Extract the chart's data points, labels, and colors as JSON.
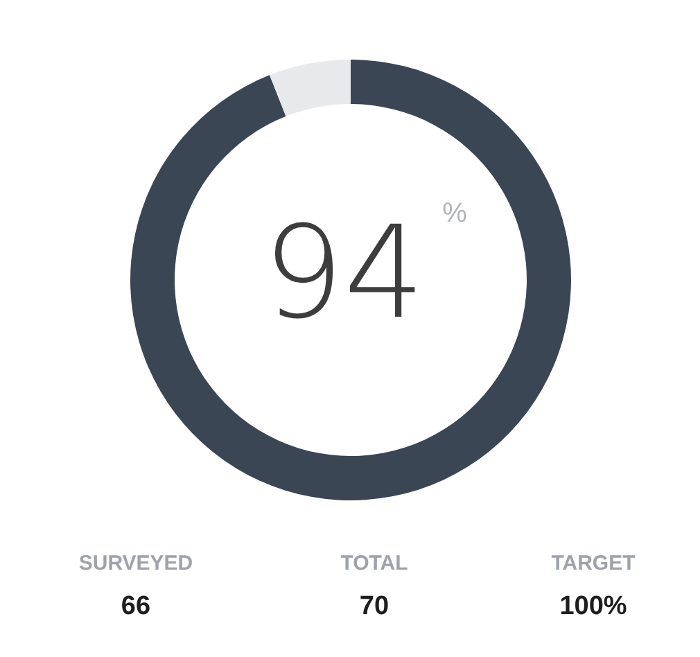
{
  "chart_data": {
    "type": "donut",
    "categories": [
      null,
      null
    ],
    "values": [
      94,
      6
    ],
    "colors": [
      "#3a4654",
      "#e8e9eb"
    ],
    "value_labels": [
      "94",
      null
    ],
    "annotations": [
      "%",
      "SURVEYED",
      "66",
      "TOTAL",
      "70",
      "TARGET",
      "100%"
    ]
  }
}
